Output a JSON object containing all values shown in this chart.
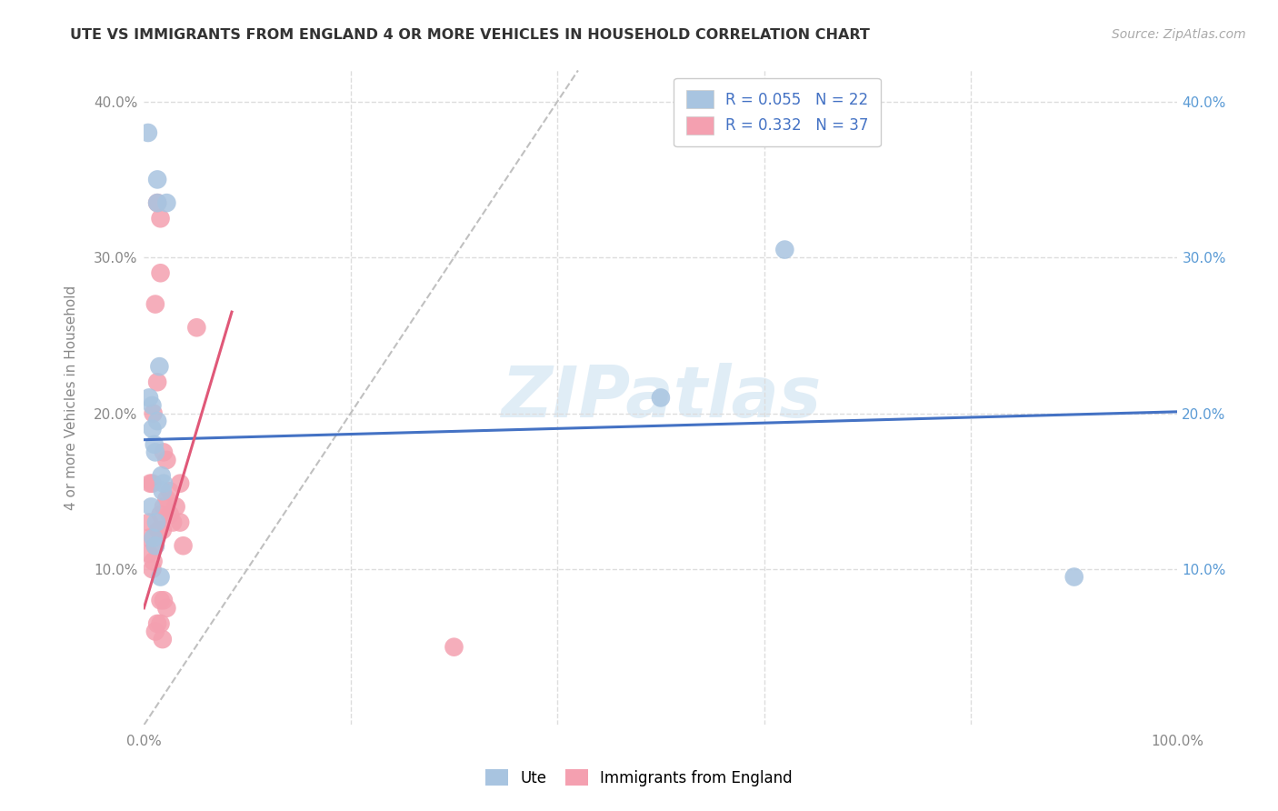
{
  "title": "UTE VS IMMIGRANTS FROM ENGLAND 4 OR MORE VEHICLES IN HOUSEHOLD CORRELATION CHART",
  "source": "Source: ZipAtlas.com",
  "ylabel": "4 or more Vehicles in Household",
  "xlim": [
    0,
    1.0
  ],
  "ylim": [
    0,
    0.42
  ],
  "xticks": [
    0.0,
    0.2,
    0.4,
    0.6,
    0.8,
    1.0
  ],
  "xticklabels": [
    "0.0%",
    "",
    "",
    "",
    "",
    "100.0%"
  ],
  "yticks": [
    0.0,
    0.1,
    0.2,
    0.3,
    0.4
  ],
  "yticklabels": [
    "",
    "10.0%",
    "20.0%",
    "30.0%",
    "40.0%"
  ],
  "legend_R": [
    "R = 0.055",
    "R = 0.332"
  ],
  "legend_N": [
    "N = 22",
    "N = 37"
  ],
  "ute_color": "#a8c4e0",
  "eng_color": "#f4a0b0",
  "ute_line_color": "#4472c4",
  "eng_line_color": "#e05878",
  "diagonal_color": "#c0c0c0",
  "watermark": "ZIPatlas",
  "ute_line_x0": 0.0,
  "ute_line_y0": 0.183,
  "ute_line_x1": 1.0,
  "ute_line_y1": 0.201,
  "eng_line_x0": 0.0,
  "eng_line_y0": 0.075,
  "eng_line_x1": 0.085,
  "eng_line_y1": 0.265,
  "ute_x": [
    0.004,
    0.013,
    0.013,
    0.022,
    0.005,
    0.008,
    0.008,
    0.01,
    0.011,
    0.013,
    0.017,
    0.019,
    0.007,
    0.009,
    0.011,
    0.016,
    0.62,
    0.9,
    0.5,
    0.012,
    0.015,
    0.018
  ],
  "ute_y": [
    0.38,
    0.335,
    0.35,
    0.335,
    0.21,
    0.205,
    0.19,
    0.18,
    0.175,
    0.195,
    0.16,
    0.155,
    0.14,
    0.12,
    0.115,
    0.095,
    0.305,
    0.095,
    0.21,
    0.13,
    0.23,
    0.15
  ],
  "eng_x": [
    0.013,
    0.016,
    0.013,
    0.019,
    0.016,
    0.011,
    0.009,
    0.006,
    0.008,
    0.005,
    0.005,
    0.005,
    0.008,
    0.009,
    0.011,
    0.014,
    0.016,
    0.018,
    0.019,
    0.022,
    0.025,
    0.022,
    0.025,
    0.028,
    0.031,
    0.035,
    0.038,
    0.016,
    0.019,
    0.022,
    0.011,
    0.013,
    0.016,
    0.018,
    0.035,
    0.051,
    0.3
  ],
  "eng_y": [
    0.335,
    0.325,
    0.22,
    0.175,
    0.29,
    0.27,
    0.2,
    0.155,
    0.155,
    0.13,
    0.12,
    0.11,
    0.1,
    0.105,
    0.115,
    0.125,
    0.135,
    0.125,
    0.14,
    0.145,
    0.15,
    0.17,
    0.135,
    0.13,
    0.14,
    0.13,
    0.115,
    0.08,
    0.08,
    0.075,
    0.06,
    0.065,
    0.065,
    0.055,
    0.155,
    0.255,
    0.05
  ]
}
